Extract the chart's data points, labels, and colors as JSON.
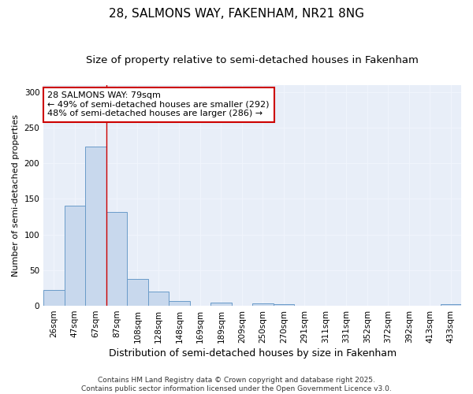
{
  "title1": "28, SALMONS WAY, FAKENHAM, NR21 8NG",
  "title2": "Size of property relative to semi-detached houses in Fakenham",
  "xlabel": "Distribution of semi-detached houses by size in Fakenham",
  "ylabel": "Number of semi-detached properties",
  "bar_labels": [
    "26sqm",
    "47sqm",
    "67sqm",
    "87sqm",
    "108sqm",
    "128sqm",
    "148sqm",
    "169sqm",
    "189sqm",
    "209sqm",
    "250sqm",
    "270sqm",
    "291sqm",
    "311sqm",
    "331sqm",
    "352sqm",
    "372sqm",
    "392sqm",
    "413sqm",
    "433sqm"
  ],
  "bar_values": [
    22,
    140,
    224,
    132,
    38,
    20,
    7,
    0,
    4,
    0,
    3,
    2,
    0,
    0,
    0,
    0,
    0,
    0,
    0,
    2
  ],
  "bar_color": "#c8d8ed",
  "bar_edge_color": "#6a9bc9",
  "background_color": "#e8eef8",
  "grid_color": "#f0f4fc",
  "annotation_line1": "28 SALMONS WAY: 79sqm",
  "annotation_line2": "← 49% of semi-detached houses are smaller (292)",
  "annotation_line3": "48% of semi-detached houses are larger (286) →",
  "annotation_box_color": "#ffffff",
  "annotation_box_edge": "#cc0000",
  "red_line_x": 2.5,
  "ylim": [
    0,
    310
  ],
  "yticks": [
    0,
    50,
    100,
    150,
    200,
    250,
    300
  ],
  "footnote": "Contains HM Land Registry data © Crown copyright and database right 2025.\nContains public sector information licensed under the Open Government Licence v3.0.",
  "title1_fontsize": 11,
  "title2_fontsize": 9.5,
  "xlabel_fontsize": 9,
  "ylabel_fontsize": 8,
  "tick_fontsize": 7.5,
  "annot_fontsize": 8,
  "footnote_fontsize": 6.5
}
